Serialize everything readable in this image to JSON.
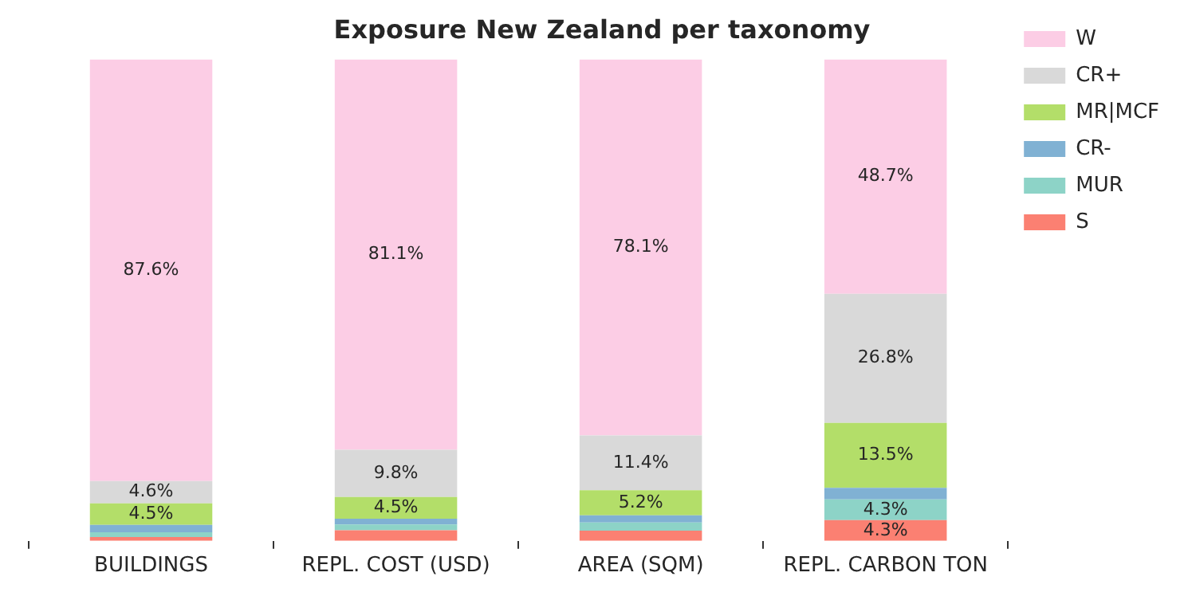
{
  "chart_data": {
    "type": "bar",
    "title": "Exposure New Zealand per taxonomy",
    "stacked": true,
    "legend": "right",
    "categories": [
      "BUILDINGS",
      "REPL. COST (USD)",
      "AREA (SQM)",
      "REPL. CARBON TON"
    ],
    "series": [
      {
        "name": "S",
        "color": "#fb8072",
        "values": [
          0.8,
          2.2,
          2.1,
          4.3
        ],
        "value_labels": [
          null,
          null,
          null,
          "4.3%"
        ]
      },
      {
        "name": "MUR",
        "color": "#8dd3c7",
        "values": [
          1.0,
          1.2,
          1.7,
          4.3
        ],
        "value_labels": [
          null,
          null,
          null,
          "4.3%"
        ]
      },
      {
        "name": "CR-",
        "color": "#80b1d3",
        "values": [
          1.5,
          1.2,
          1.5,
          2.4
        ],
        "value_labels": [
          null,
          null,
          null,
          null
        ]
      },
      {
        "name": "MR|MCF",
        "color": "#b3de69",
        "values": [
          4.5,
          4.5,
          5.2,
          13.5
        ],
        "value_labels": [
          "4.5%",
          "4.5%",
          "5.2%",
          "13.5%"
        ]
      },
      {
        "name": "CR+",
        "color": "#d9d9d9",
        "values": [
          4.6,
          9.8,
          11.4,
          26.8
        ],
        "value_labels": [
          "4.6%",
          "9.8%",
          "11.4%",
          "26.8%"
        ]
      },
      {
        "name": "W",
        "color": "#fccde5",
        "values": [
          87.6,
          81.1,
          78.1,
          48.7
        ],
        "value_labels": [
          "87.6%",
          "81.1%",
          "78.1%",
          "48.7%"
        ]
      }
    ]
  }
}
